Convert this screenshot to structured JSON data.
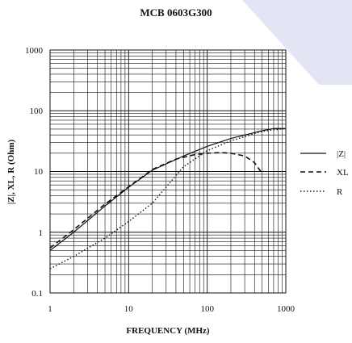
{
  "chart_data": {
    "type": "line",
    "title": "MCB 0603G300",
    "xlabel": "FREQUENCY (MHz)",
    "ylabel": "|Z|, XL, R (Ohm)",
    "x_scale": "log",
    "y_scale": "log",
    "xlim": [
      1,
      1000
    ],
    "ylim": [
      0.1,
      1000
    ],
    "x_ticks": [
      "1",
      "10",
      "100",
      "1000"
    ],
    "y_ticks": [
      "0.1",
      "1",
      "10",
      "100",
      "1000"
    ],
    "grid": true,
    "legend_position": "right",
    "series": [
      {
        "name": "|Z|",
        "style": "solid",
        "color": "#111111",
        "points": [
          [
            1,
            0.5
          ],
          [
            2,
            1.0
          ],
          [
            5,
            2.7
          ],
          [
            10,
            5.5
          ],
          [
            20,
            10.5
          ],
          [
            50,
            18
          ],
          [
            100,
            26
          ],
          [
            200,
            35
          ],
          [
            500,
            47
          ],
          [
            700,
            51
          ],
          [
            1000,
            51
          ]
        ]
      },
      {
        "name": "XL",
        "style": "dashed",
        "color": "#111111",
        "points": [
          [
            1,
            0.55
          ],
          [
            2,
            1.1
          ],
          [
            5,
            2.9
          ],
          [
            10,
            5.6
          ],
          [
            20,
            10.8
          ],
          [
            40,
            16
          ],
          [
            70,
            19
          ],
          [
            100,
            20
          ],
          [
            150,
            20.5
          ],
          [
            200,
            20
          ],
          [
            300,
            18
          ],
          [
            400,
            14
          ],
          [
            480,
            10
          ]
        ]
      },
      {
        "name": "R",
        "style": "dotted",
        "color": "#111111",
        "points": [
          [
            1,
            0.25
          ],
          [
            2,
            0.4
          ],
          [
            5,
            0.8
          ],
          [
            10,
            1.5
          ],
          [
            20,
            3.0
          ],
          [
            35,
            7
          ],
          [
            50,
            12
          ],
          [
            100,
            22
          ],
          [
            200,
            32
          ],
          [
            500,
            46
          ],
          [
            1000,
            51
          ]
        ]
      }
    ]
  },
  "watermark_color": "#e3e5f5"
}
